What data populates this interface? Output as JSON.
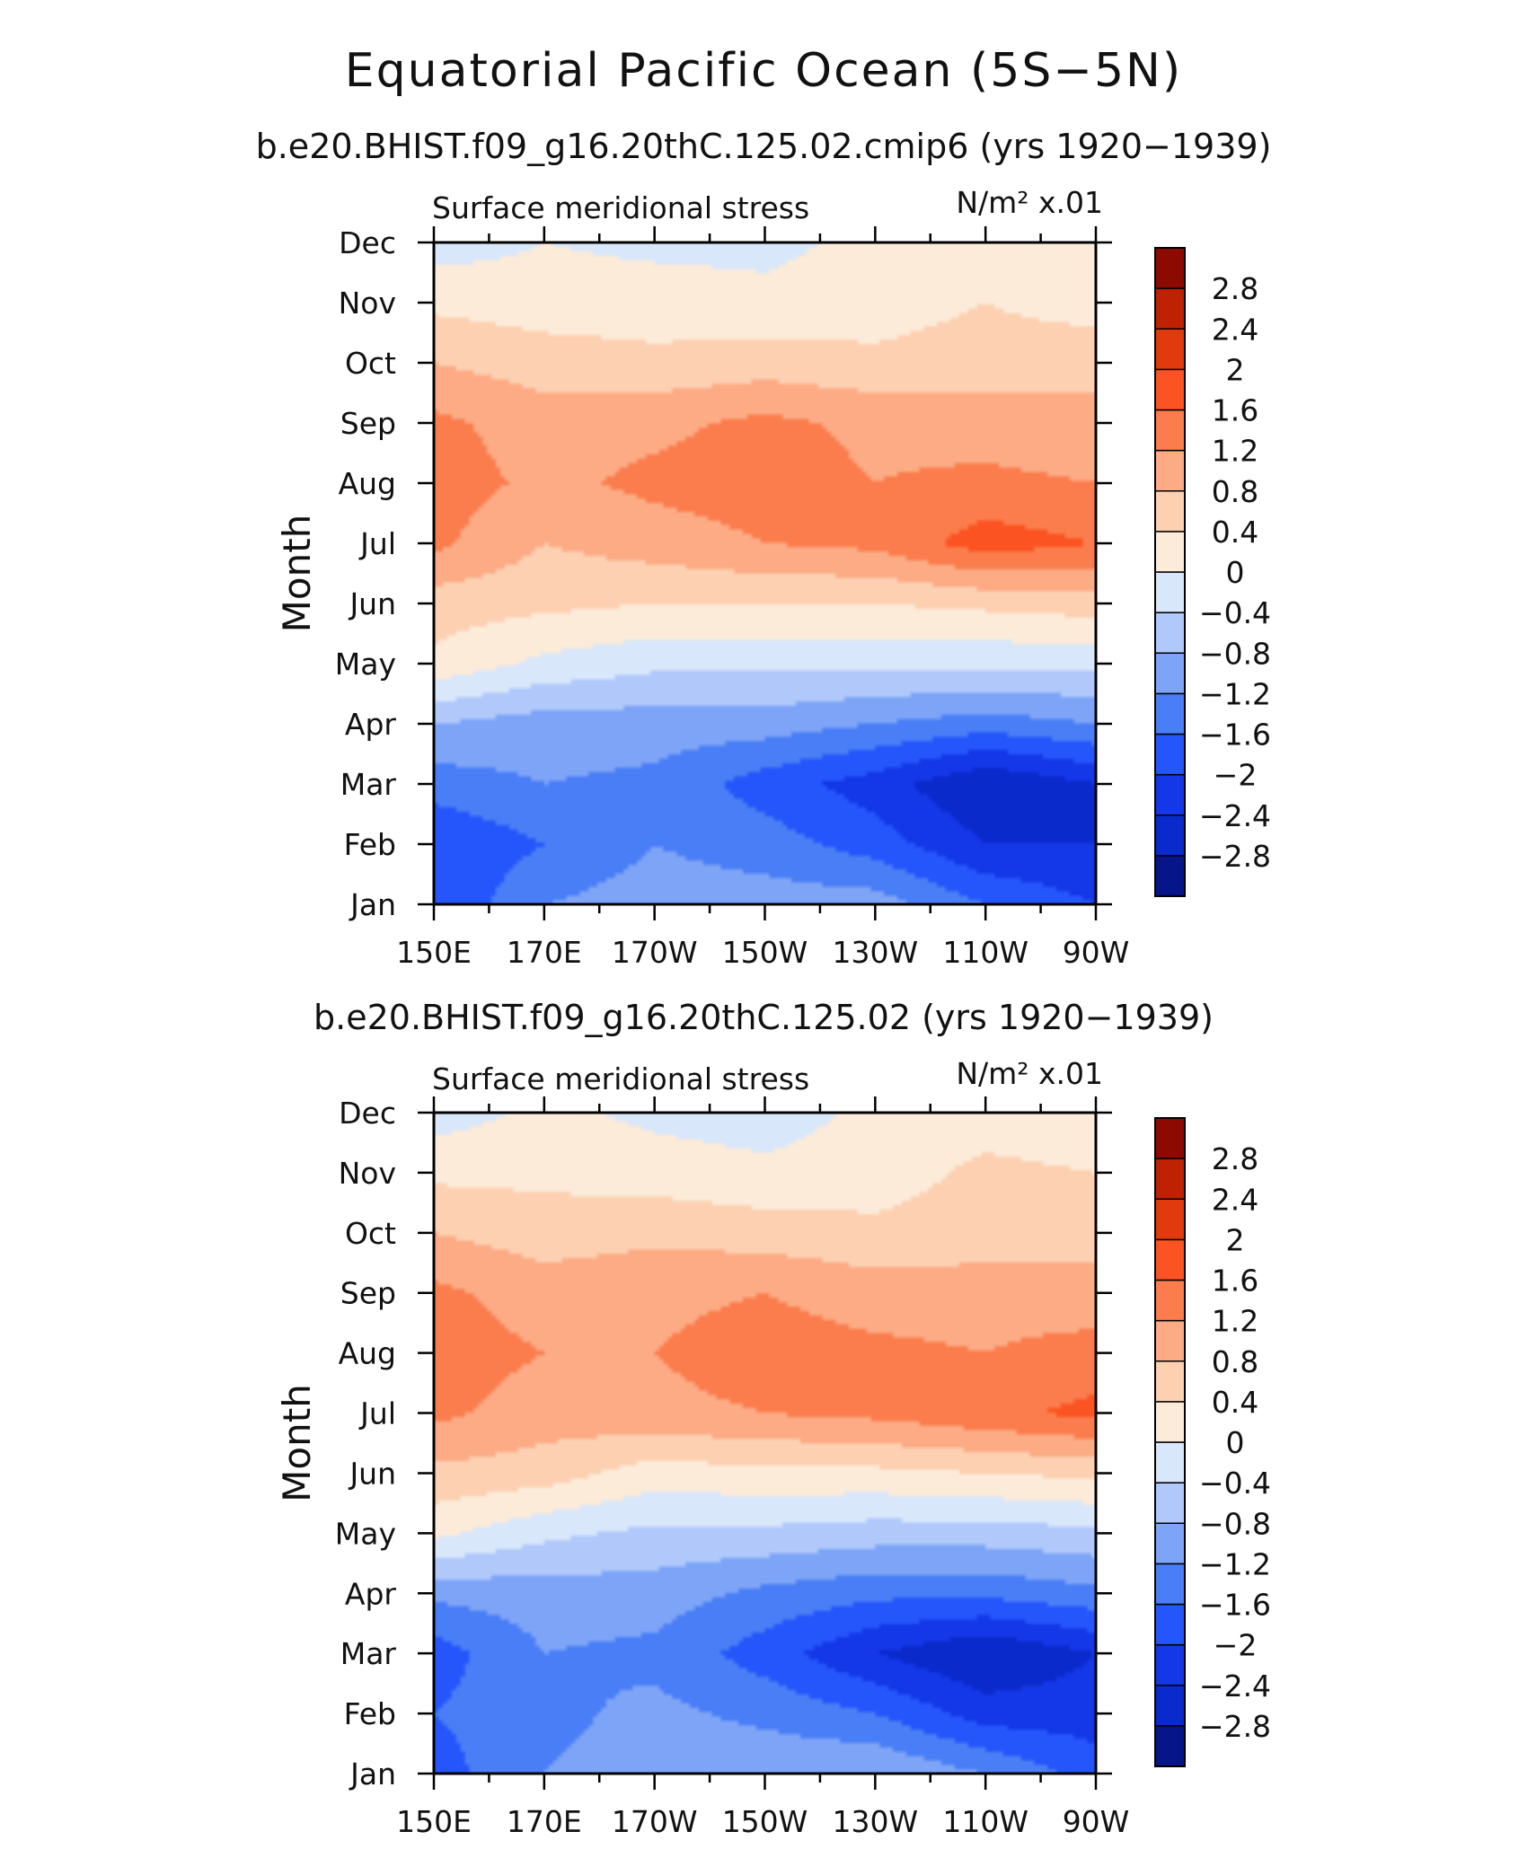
{
  "figure": {
    "title": "Equatorial Pacific Ocean (5S−5N)"
  },
  "chart_data": [
    {
      "type": "heatmap",
      "title": "b.e20.BHIST.f09_g16.20thC.125.02.cmip6 (yrs 1920−1939)",
      "left_label": "Surface meridional stress",
      "right_label": "N/m² x.01",
      "xlabel": "",
      "ylabel": "Month",
      "x_tick_labels": [
        "150E",
        "170E",
        "170W",
        "150W",
        "130W",
        "110W",
        "90W"
      ],
      "y_tick_labels": [
        "Jan",
        "Feb",
        "Mar",
        "Apr",
        "May",
        "Jun",
        "Jul",
        "Aug",
        "Sep",
        "Oct",
        "Nov",
        "Dec"
      ],
      "xlim": [
        150,
        270
      ],
      "ylim": [
        1,
        12
      ],
      "grid": {
        "lon": [
          150,
          170,
          190,
          210,
          230,
          250,
          270
        ],
        "months": [
          1,
          2,
          3,
          4,
          5,
          6,
          7,
          8,
          9,
          10,
          11,
          12
        ],
        "values": [
          [
            -2.0,
            -1.2,
            -1.0,
            -1.0,
            -1.0,
            -1.6,
            -2.0
          ],
          [
            -2.0,
            -1.6,
            -1.2,
            -1.4,
            -1.8,
            -2.4,
            -2.4
          ],
          [
            -1.4,
            -1.2,
            -1.3,
            -1.8,
            -2.2,
            -2.8,
            -2.4
          ],
          [
            -0.8,
            -1.0,
            -1.0,
            -1.0,
            -1.2,
            -1.4,
            -1.2
          ],
          [
            0.3,
            -0.1,
            -0.3,
            -0.3,
            -0.3,
            -0.3,
            -0.3
          ],
          [
            0.6,
            0.5,
            0.4,
            0.4,
            0.4,
            0.5,
            0.6
          ],
          [
            1.3,
            0.8,
            1.0,
            1.2,
            1.3,
            1.8,
            1.6
          ],
          [
            1.4,
            1.1,
            1.3,
            1.4,
            1.2,
            1.3,
            1.2
          ],
          [
            1.3,
            1.0,
            1.1,
            1.3,
            1.1,
            1.0,
            0.9
          ],
          [
            0.8,
            0.6,
            0.5,
            0.6,
            0.5,
            0.6,
            0.7
          ],
          [
            0.3,
            0.2,
            0.2,
            0.1,
            0.2,
            0.4,
            0.2
          ],
          [
            -0.2,
            0.0,
            -0.1,
            -0.1,
            0.1,
            0.1,
            0.0
          ]
        ]
      }
    },
    {
      "type": "heatmap",
      "title": "b.e20.BHIST.f09_g16.20thC.125.02 (yrs 1920−1939)",
      "left_label": "Surface meridional stress",
      "right_label": "N/m² x.01",
      "xlabel": "",
      "ylabel": "Month",
      "x_tick_labels": [
        "150E",
        "170E",
        "170W",
        "150W",
        "130W",
        "110W",
        "90W"
      ],
      "y_tick_labels": [
        "Jan",
        "Feb",
        "Mar",
        "Apr",
        "May",
        "Jun",
        "Jul",
        "Aug",
        "Sep",
        "Oct",
        "Nov",
        "Dec"
      ],
      "xlim": [
        150,
        270
      ],
      "ylim": [
        1,
        12
      ],
      "grid": {
        "lon": [
          150,
          170,
          190,
          210,
          230,
          250,
          270
        ],
        "months": [
          1,
          2,
          3,
          4,
          5,
          6,
          7,
          8,
          9,
          10,
          11,
          12
        ],
        "values": [
          [
            -1.8,
            -1.2,
            -1.0,
            -0.9,
            -0.8,
            -1.2,
            -1.8
          ],
          [
            -1.6,
            -1.3,
            -1.1,
            -1.3,
            -1.6,
            -2.2,
            -2.2
          ],
          [
            -1.8,
            -1.2,
            -1.3,
            -1.8,
            -2.4,
            -2.8,
            -2.4
          ],
          [
            -1.1,
            -1.0,
            -1.0,
            -1.3,
            -1.5,
            -1.5,
            -1.3
          ],
          [
            0.1,
            -0.3,
            -0.5,
            -0.5,
            -0.6,
            -0.6,
            -0.5
          ],
          [
            0.7,
            0.6,
            0.2,
            0.3,
            0.3,
            0.4,
            0.5
          ],
          [
            1.3,
            1.0,
            1.1,
            1.2,
            1.3,
            1.5,
            1.7
          ],
          [
            1.4,
            1.2,
            1.2,
            1.4,
            1.3,
            1.2,
            1.4
          ],
          [
            1.3,
            1.0,
            1.1,
            1.2,
            1.0,
            1.0,
            0.9
          ],
          [
            0.8,
            0.6,
            0.7,
            0.6,
            0.5,
            0.6,
            0.7
          ],
          [
            0.3,
            0.3,
            0.2,
            0.1,
            0.2,
            0.5,
            0.4
          ],
          [
            -0.2,
            0.1,
            -0.1,
            -0.2,
            0.1,
            0.2,
            0.1
          ]
        ]
      }
    }
  ],
  "colorbar": {
    "levels": [
      -2.8,
      -2.4,
      -2.0,
      -1.6,
      -1.2,
      -0.8,
      -0.4,
      0.0,
      0.4,
      0.8,
      1.2,
      1.6,
      2.0,
      2.4,
      2.8
    ],
    "labels": [
      "−2.8",
      "−2.4",
      "−2",
      "−1.6",
      "−1.2",
      "−0.8",
      "−0.4",
      "0",
      "0.4",
      "0.8",
      "1.2",
      "1.6",
      "2",
      "2.4",
      "2.8"
    ],
    "colors": [
      "#061587",
      "#0a2acc",
      "#1438e8",
      "#2456fb",
      "#4a7ef6",
      "#7da4f7",
      "#b0c9fa",
      "#d9e7fb",
      "#fcebd9",
      "#fdd0b2",
      "#fcab85",
      "#fb7d4d",
      "#fb5422",
      "#e13a0c",
      "#bf2202",
      "#8d0a02"
    ]
  }
}
